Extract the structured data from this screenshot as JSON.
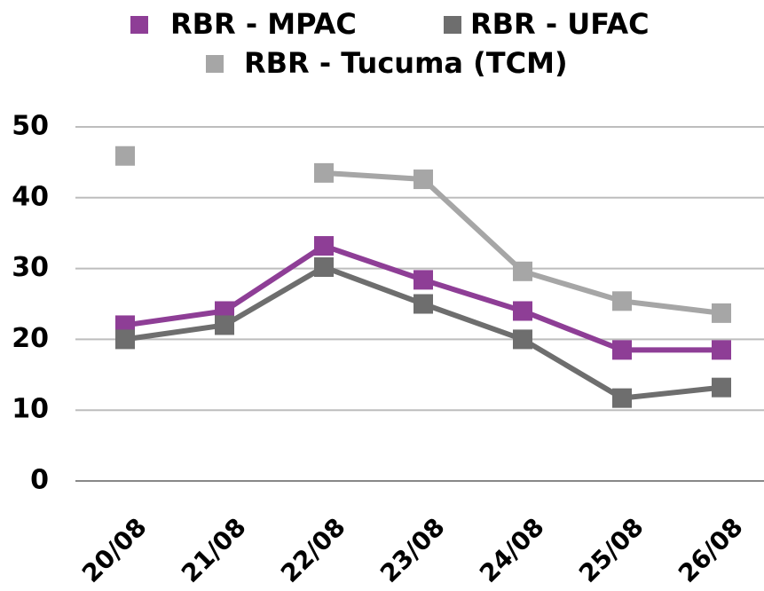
{
  "chart_data": {
    "type": "line",
    "categories": [
      "20/08",
      "21/08",
      "22/08",
      "23/08",
      "24/08",
      "25/08",
      "26/08"
    ],
    "series": [
      {
        "name": "RBR - MPAC",
        "color": "#8e3e96",
        "values": [
          22,
          24,
          33.2,
          28.4,
          24,
          18.5,
          18.5
        ]
      },
      {
        "name": "RBR - UFAC",
        "color": "#6e6e6e",
        "values": [
          20,
          22,
          30.2,
          25,
          20,
          11.7,
          13.2
        ]
      },
      {
        "name": "RBR - Tucuma (TCM)",
        "color": "#a6a6a6",
        "values": [
          45.9,
          null,
          43.5,
          42.6,
          29.6,
          25.4,
          23.7
        ]
      }
    ],
    "ylim": [
      0,
      50
    ],
    "yticks": [
      0,
      10,
      20,
      30,
      40,
      50
    ],
    "grid": true,
    "legend": "top"
  }
}
